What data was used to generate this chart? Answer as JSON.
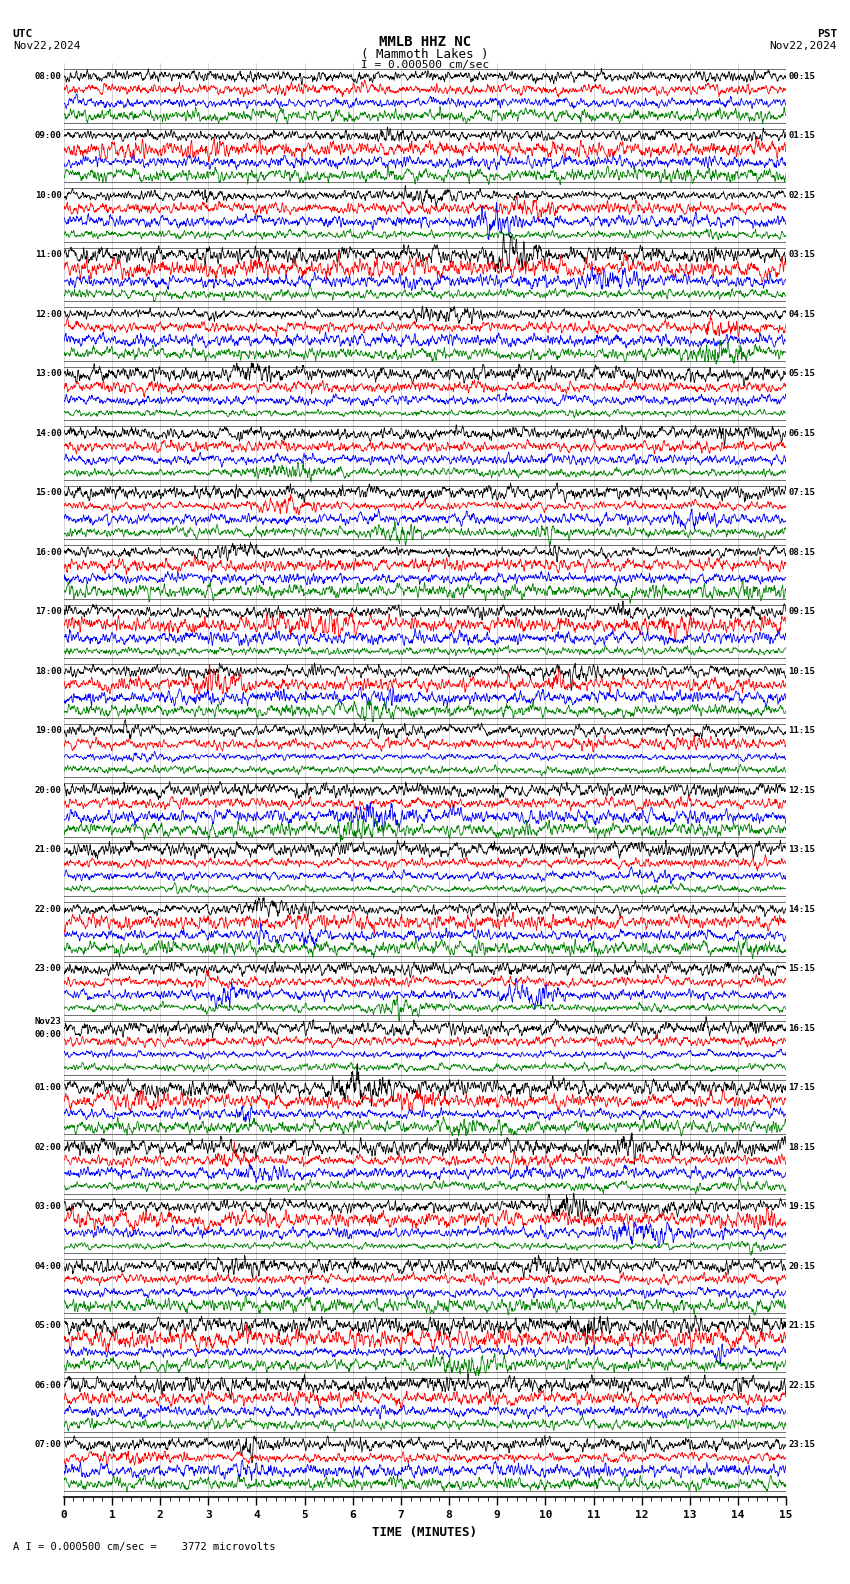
{
  "title_line1": "MMLB HHZ NC",
  "title_line2": "( Mammoth Lakes )",
  "scale_label": "I = 0.000500 cm/sec",
  "utc_label": "UTC",
  "pst_label": "PST",
  "date_left": "Nov22,2024",
  "date_right": "Nov22,2024",
  "bottom_label": "A I = 0.000500 cm/sec =    3772 microvolts",
  "xlabel": "TIME (MINUTES)",
  "trace_colors": [
    "black",
    "red",
    "blue",
    "green"
  ],
  "bg_color": "white",
  "minutes_per_row": 15,
  "n_groups": 24,
  "n_traces_per_group": 4,
  "fig_width": 8.5,
  "fig_height": 15.84,
  "dpi": 100,
  "noise_amp_black": 0.38,
  "noise_amp_red": 0.42,
  "noise_amp_blue": 0.32,
  "noise_amp_green": 0.3,
  "trace_sep": 1.0,
  "group_extra_sep": 0.55,
  "samples_per_row": 2000,
  "left_time_labels": [
    "08:00",
    "09:00",
    "10:00",
    "11:00",
    "12:00",
    "13:00",
    "14:00",
    "15:00",
    "16:00",
    "17:00",
    "18:00",
    "19:00",
    "20:00",
    "21:00",
    "22:00",
    "23:00",
    "Nov23\n00:00",
    "01:00",
    "02:00",
    "03:00",
    "04:00",
    "05:00",
    "06:00",
    "07:00"
  ],
  "right_time_labels": [
    "00:15",
    "01:15",
    "02:15",
    "03:15",
    "04:15",
    "05:15",
    "06:15",
    "07:15",
    "08:15",
    "09:15",
    "10:15",
    "11:15",
    "12:15",
    "13:15",
    "14:15",
    "15:15",
    "16:15",
    "17:15",
    "18:15",
    "19:15",
    "20:15",
    "21:15",
    "22:15",
    "23:15"
  ]
}
